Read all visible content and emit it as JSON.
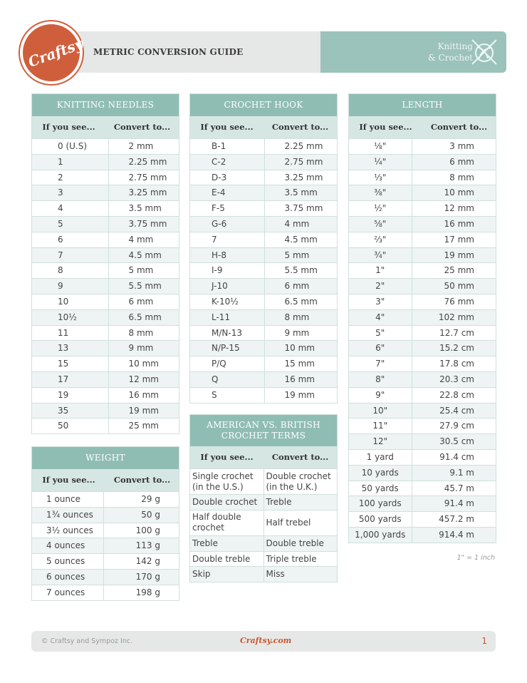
{
  "header": {
    "logo_text": "Craftsy",
    "title": "METRIC CONVERSION GUIDE",
    "category_line1": "Knitting",
    "category_line2": "& Crochet",
    "icon": "yarn-ball-needles-icon"
  },
  "colors": {
    "accent": "#8fbdb4",
    "brand": "#cf5f3c",
    "subheader": "#d6e7e3"
  },
  "tables": {
    "knitting": {
      "title": "KNITTING NEEDLES",
      "col1": "If you see...",
      "col2": "Convert to...",
      "rows": [
        [
          "0 (U.S)",
          "2 mm"
        ],
        [
          "1",
          "2.25 mm"
        ],
        [
          "2",
          "2.75 mm"
        ],
        [
          "3",
          "3.25 mm"
        ],
        [
          "4",
          "3.5 mm"
        ],
        [
          "5",
          "3.75 mm"
        ],
        [
          "6",
          "4 mm"
        ],
        [
          "7",
          "4.5 mm"
        ],
        [
          "8",
          "5 mm"
        ],
        [
          "9",
          "5.5 mm"
        ],
        [
          "10",
          "6 mm"
        ],
        [
          "10½",
          "6.5 mm"
        ],
        [
          "11",
          "8 mm"
        ],
        [
          "13",
          "9 mm"
        ],
        [
          "15",
          "10 mm"
        ],
        [
          "17",
          "12 mm"
        ],
        [
          "19",
          "16 mm"
        ],
        [
          "35",
          "19 mm"
        ],
        [
          "50",
          "25 mm"
        ]
      ]
    },
    "weight": {
      "title": "WEIGHT",
      "col1": "If you see...",
      "col2": "Convert to...",
      "rows": [
        [
          "1 ounce",
          "29 g"
        ],
        [
          "1¾ ounces",
          "50 g"
        ],
        [
          "3½ ounces",
          "100 g"
        ],
        [
          "4 ounces",
          "113 g"
        ],
        [
          "5 ounces",
          "142 g"
        ],
        [
          "6 ounces",
          "170 g"
        ],
        [
          "7 ounces",
          "198 g"
        ]
      ]
    },
    "hook": {
      "title": "CROCHET HOOK",
      "col1": "If you see...",
      "col2": "Convert to...",
      "rows": [
        [
          "B-1",
          "2.25 mm"
        ],
        [
          "C-2",
          "2.75 mm"
        ],
        [
          "D-3",
          "3.25 mm"
        ],
        [
          "E-4",
          "3.5 mm"
        ],
        [
          "F-5",
          "3.75 mm"
        ],
        [
          "G-6",
          "4 mm"
        ],
        [
          "7",
          "4.5 mm"
        ],
        [
          "H-8",
          "5 mm"
        ],
        [
          "I-9",
          "5.5 mm"
        ],
        [
          "J-10",
          "6 mm"
        ],
        [
          "K-10½",
          "6.5 mm"
        ],
        [
          "L-11",
          "8 mm"
        ],
        [
          "M/N-13",
          "9 mm"
        ],
        [
          "N/P-15",
          "10 mm"
        ],
        [
          "P/Q",
          "15 mm"
        ],
        [
          "Q",
          "16 mm"
        ],
        [
          "S",
          "19 mm"
        ]
      ]
    },
    "terms": {
      "title": "AMERICAN VS. BRITISH CROCHET TERMS",
      "col1": "If you see...",
      "col2": "Convert to...",
      "rows": [
        [
          "Single crochet (in the U.S.)",
          "Double crochet (in the U.K.)"
        ],
        [
          "Double crochet",
          "Treble"
        ],
        [
          "Half double crochet",
          "Half trebel"
        ],
        [
          "Treble",
          "Double treble"
        ],
        [
          "Double treble",
          "Triple treble"
        ],
        [
          "Skip",
          "Miss"
        ]
      ]
    },
    "length": {
      "title": "LENGTH",
      "col1": "If you see...",
      "col2": "Convert to...",
      "rows": [
        [
          "⅛\"",
          "3 mm"
        ],
        [
          "¼\"",
          "6 mm"
        ],
        [
          "⅓\"",
          "8 mm"
        ],
        [
          "⅜\"",
          "10 mm"
        ],
        [
          "½\"",
          "12 mm"
        ],
        [
          "⅝\"",
          "16 mm"
        ],
        [
          "⅔\"",
          "17 mm"
        ],
        [
          "¾\"",
          "19 mm"
        ],
        [
          "1\"",
          "25 mm"
        ],
        [
          "2\"",
          "50 mm"
        ],
        [
          "3\"",
          "76 mm"
        ],
        [
          "4\"",
          "102 mm"
        ],
        [
          "5\"",
          "12.7 cm"
        ],
        [
          "6\"",
          "15.2 cm"
        ],
        [
          "7\"",
          "17.8 cm"
        ],
        [
          "8\"",
          "20.3 cm"
        ],
        [
          "9\"",
          "22.8 cm"
        ],
        [
          "10\"",
          "25.4 cm"
        ],
        [
          "11\"",
          "27.9 cm"
        ],
        [
          "12\"",
          "30.5 cm"
        ],
        [
          "1 yard",
          "91.4 cm"
        ],
        [
          "10 yards",
          "9.1 m"
        ],
        [
          "50 yards",
          "45.7 m"
        ],
        [
          "100 yards",
          "91.4 m"
        ],
        [
          "500 yards",
          "457.2 m"
        ],
        [
          "1,000 yards",
          "914.4 m"
        ]
      ],
      "note": "1\" = 1 inch"
    }
  },
  "footer": {
    "copyright": "© Craftsy and Sympoz Inc.",
    "site": "Craftsy.com",
    "page": "1"
  }
}
